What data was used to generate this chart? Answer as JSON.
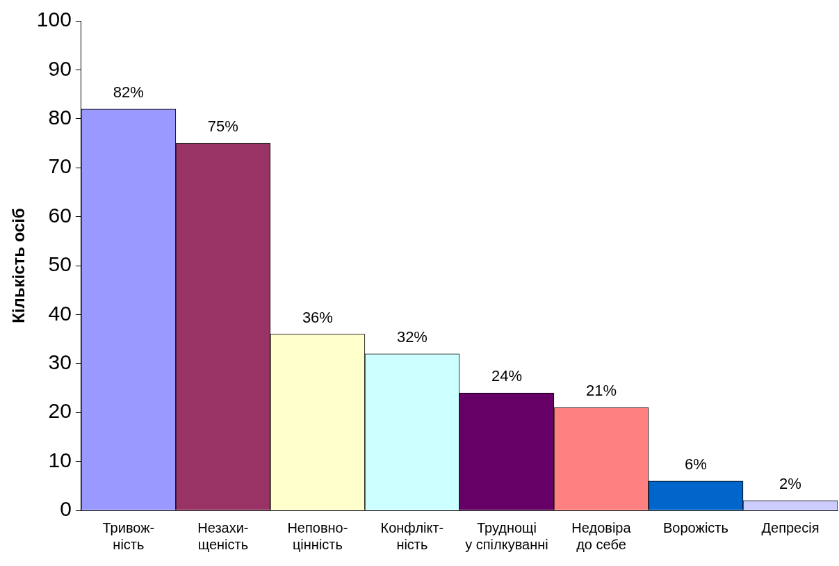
{
  "chart_data": {
    "type": "bar",
    "ylabel": "Кількість осіб",
    "categories": [
      "Тривож-\nність",
      "Незахи-\nщеність",
      "Неповно-\nцінність",
      "Конфлікт-\nність",
      "Труднощі\nу спілкуванні",
      "Недовіра\nдо себе",
      "Ворожість",
      "Депресія"
    ],
    "values": [
      82,
      75,
      36,
      32,
      24,
      21,
      6,
      2
    ],
    "colors": [
      "#9999ff",
      "#993366",
      "#ffffcc",
      "#ccffff",
      "#660066",
      "#ff8080",
      "#0066cc",
      "#ccccff"
    ],
    "value_labels": [
      "82%",
      "75%",
      "36%",
      "32%",
      "24%",
      "21%",
      "6%",
      "2%"
    ],
    "ylim": [
      0,
      100
    ],
    "yticks": [
      0,
      10,
      20,
      30,
      40,
      50,
      60,
      70,
      80,
      90,
      100
    ],
    "grid": false,
    "legend": false
  }
}
